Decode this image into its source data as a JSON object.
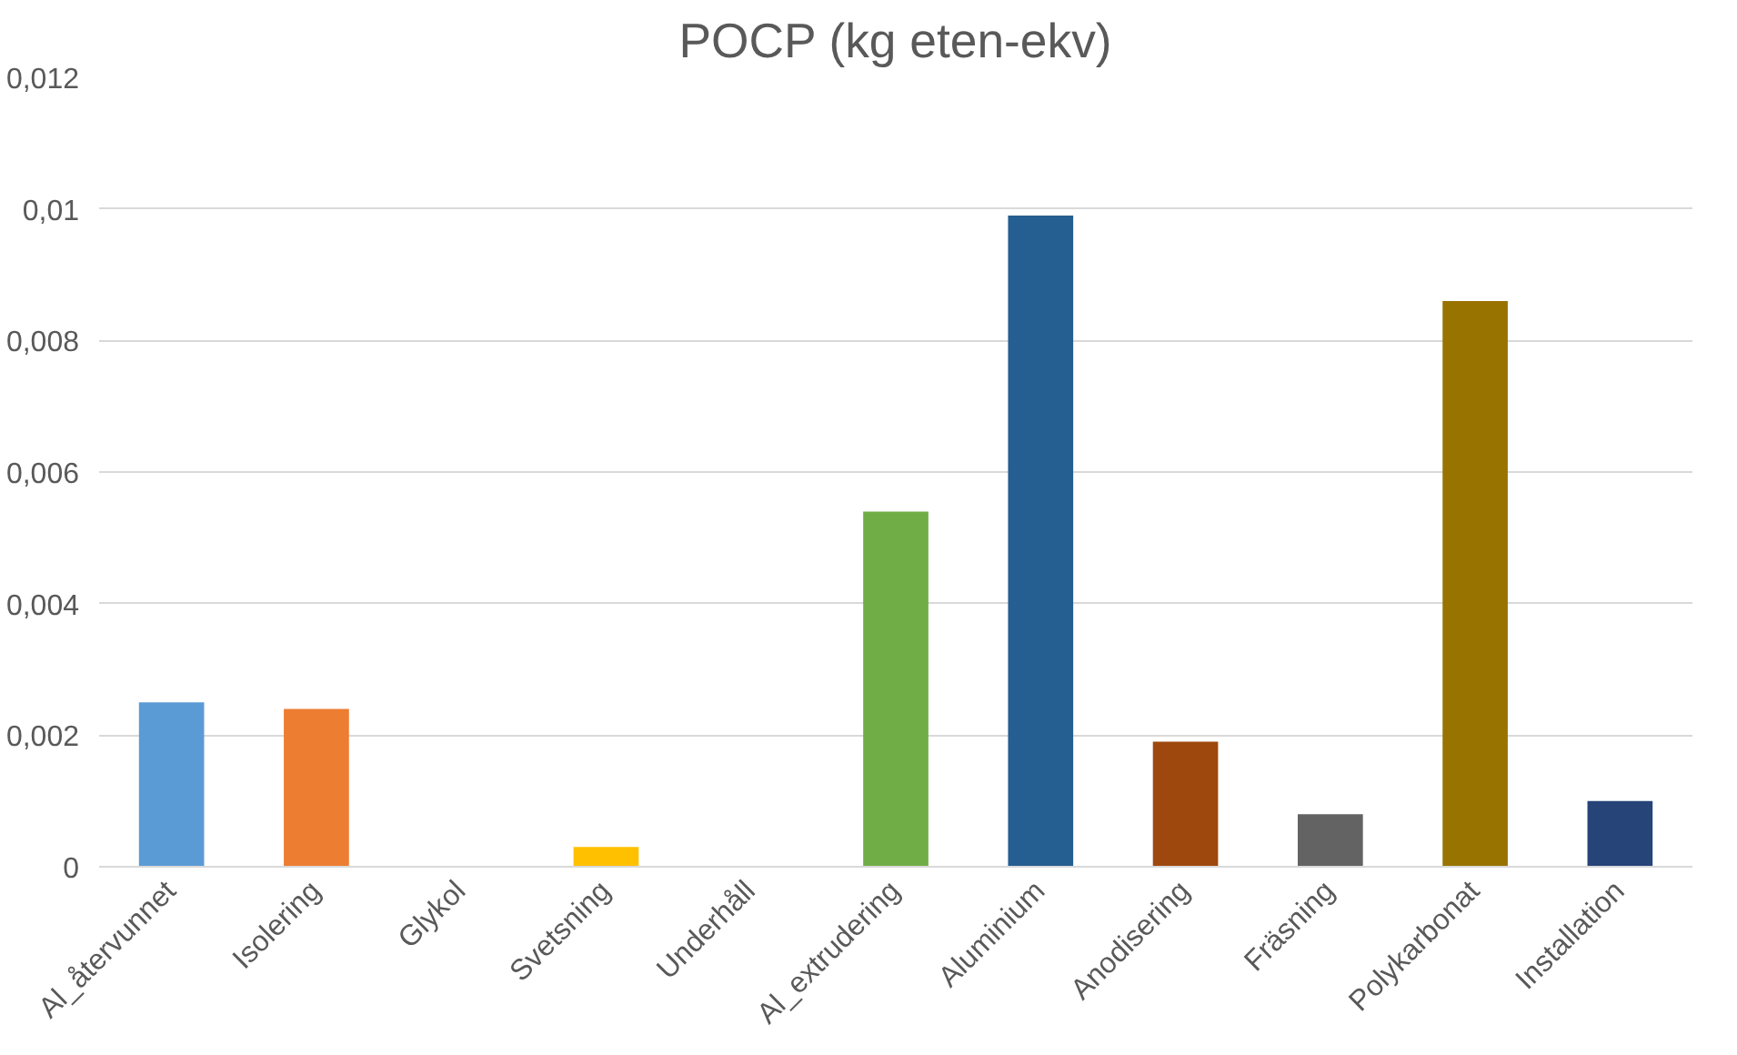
{
  "chart_data": {
    "type": "bar",
    "title": "POCP (kg eten-ekv)",
    "categories": [
      "Al_återvunnet",
      "Isolering",
      "Glykol",
      "Svetsning",
      "Underhåll",
      "Al_extrudering",
      "Aluminium",
      "Anodisering",
      "Fräsning",
      "Polykarbonat",
      "Installation"
    ],
    "values": [
      0.0025,
      0.0024,
      0,
      0.0003,
      0,
      0.0054,
      0.0099,
      0.0019,
      0.0008,
      0.0086,
      0.001
    ],
    "colors": [
      "#5b9bd5",
      "#ed7d31",
      "#a5a5a5",
      "#ffc000",
      "#4472c4",
      "#70ad47",
      "#255e91",
      "#9e480e",
      "#636363",
      "#997300",
      "#264478"
    ],
    "ylim": [
      0,
      0.012
    ],
    "yticks": [
      0,
      {
        "value": 0.002,
        "label": "0,002"
      },
      {
        "value": 0.004,
        "label": "0,004"
      },
      {
        "value": 0.006,
        "label": "0,006"
      },
      {
        "value": 0.008,
        "label": "0,008"
      },
      {
        "value": 0.01,
        "label": "0,01"
      },
      {
        "value": 0.012,
        "label": "0,012"
      }
    ],
    "grid": "y"
  }
}
